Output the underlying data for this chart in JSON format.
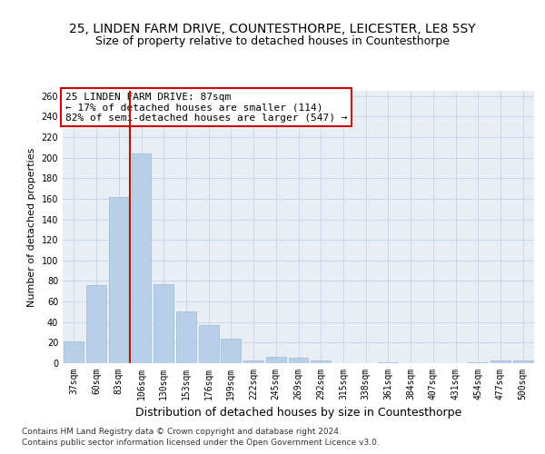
{
  "title_line1": "25, LINDEN FARM DRIVE, COUNTESTHORPE, LEICESTER, LE8 5SY",
  "title_line2": "Size of property relative to detached houses in Countesthorpe",
  "xlabel": "Distribution of detached houses by size in Countesthorpe",
  "ylabel": "Number of detached properties",
  "categories": [
    "37sqm",
    "60sqm",
    "83sqm",
    "106sqm",
    "130sqm",
    "153sqm",
    "176sqm",
    "199sqm",
    "222sqm",
    "245sqm",
    "269sqm",
    "292sqm",
    "315sqm",
    "338sqm",
    "361sqm",
    "384sqm",
    "407sqm",
    "431sqm",
    "454sqm",
    "477sqm",
    "500sqm"
  ],
  "values": [
    21,
    76,
    162,
    204,
    77,
    50,
    37,
    24,
    3,
    6,
    5,
    3,
    0,
    0,
    1,
    0,
    0,
    0,
    1,
    3,
    3
  ],
  "bar_color": "#b8cfe8",
  "bar_edge_color": "#9ab8d8",
  "vline_x": 2.5,
  "vline_color": "#cc0000",
  "annotation_text": "25 LINDEN FARM DRIVE: 87sqm\n← 17% of detached houses are smaller (114)\n82% of semi-detached houses are larger (547) →",
  "annotation_box_color": "white",
  "annotation_box_edge": "#cc0000",
  "ylim": [
    0,
    265
  ],
  "yticks": [
    0,
    20,
    40,
    60,
    80,
    100,
    120,
    140,
    160,
    180,
    200,
    220,
    240,
    260
  ],
  "grid_color": "#c8d8e8",
  "background_color": "#e8eef4",
  "footer_line1": "Contains HM Land Registry data © Crown copyright and database right 2024.",
  "footer_line2": "Contains public sector information licensed under the Open Government Licence v3.0.",
  "title_fontsize": 10,
  "subtitle_fontsize": 9,
  "tick_fontsize": 7,
  "ylabel_fontsize": 8,
  "xlabel_fontsize": 9,
  "annotation_fontsize": 8
}
